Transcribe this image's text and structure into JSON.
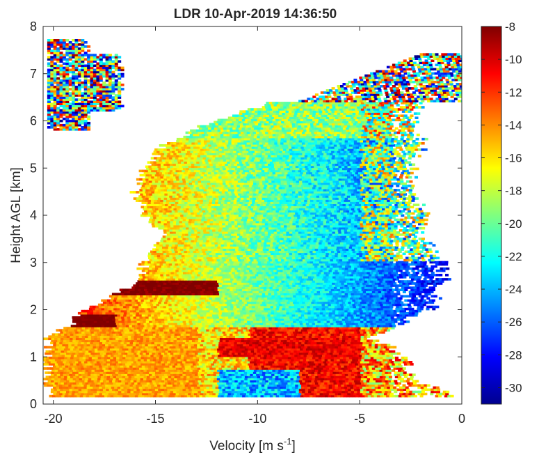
{
  "chart_data": {
    "type": "heatmap",
    "title": "LDR 10-Apr-2019 14:36:50",
    "xlabel": "Velocity [m s",
    "xlabel_sup": "-1",
    "xlabel_end": "]",
    "ylabel": "Height AGL [km]",
    "xlim": [
      -20.5,
      0
    ],
    "ylim": [
      0,
      8
    ],
    "xticks": [
      "-20",
      "-15",
      "-10",
      "-5",
      "0"
    ],
    "yticks": [
      "0",
      "1",
      "2",
      "3",
      "4",
      "5",
      "6",
      "7",
      "8"
    ],
    "colorbar": {
      "clim": [
        -31,
        -8
      ],
      "ticks": [
        "-8",
        "-10",
        "-12",
        "-14",
        "-16",
        "-18",
        "-20",
        "-22",
        "-24",
        "-26",
        "-28",
        "-30"
      ],
      "colormap": "jet"
    },
    "grid": false,
    "signal_envelope": {
      "height_km": [
        0.15,
        0.5,
        1.0,
        1.4,
        1.7,
        2.0,
        2.5,
        3.0,
        3.5,
        4.0,
        4.5,
        5.0,
        5.5,
        6.0,
        6.4
      ],
      "v_left": [
        -20.3,
        -20.3,
        -20.3,
        -20.3,
        -19.0,
        -18.5,
        -16.0,
        -15.5,
        -14.5,
        -15.5,
        -16.0,
        -15.5,
        -14.5,
        -12.0,
        -9.0
      ],
      "v_right": [
        -0.3,
        -2.5,
        -3.0,
        -4.5,
        -3.0,
        -1.5,
        -1.0,
        -1.0,
        -2.0,
        -2.0,
        -2.5,
        -2.5,
        -2.0,
        -2.5,
        -2.0
      ]
    },
    "upper_layer": {
      "height_km": [
        5.8,
        7.7
      ],
      "v_range": [
        -20.3,
        -17.0
      ]
    },
    "upper_right_layer": {
      "height_km": [
        6.4,
        7.4
      ],
      "v_range": [
        -3.0,
        0
      ]
    }
  }
}
